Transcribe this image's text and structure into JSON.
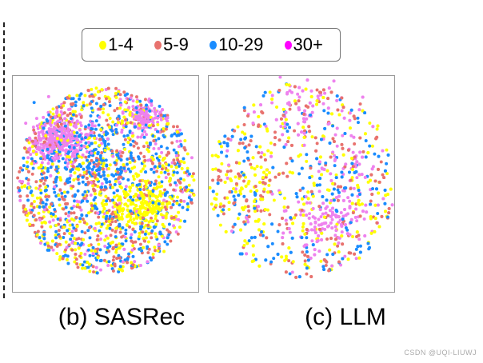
{
  "chart_data": [
    {
      "type": "scatter",
      "title": "(b) SASRec",
      "legend_placement": "top-center",
      "series": [
        {
          "name": "1-4",
          "color": "#ffff00"
        },
        {
          "name": "5-9",
          "color": "#e8726e"
        },
        {
          "name": "10-29",
          "color": "#1a8cff"
        },
        {
          "name": "30+",
          "color": "#ee82ee"
        }
      ]
    },
    {
      "type": "scatter",
      "title": "(c) LLM",
      "legend_placement": "top-center",
      "series": [
        {
          "name": "1-4",
          "color": "#ffff00"
        },
        {
          "name": "5-9",
          "color": "#e8726e"
        },
        {
          "name": "10-29",
          "color": "#1a8cff"
        },
        {
          "name": "30+",
          "color": "#ee82ee"
        }
      ]
    }
  ],
  "legend": [
    {
      "label": "1-4",
      "color": "#ffff00"
    },
    {
      "label": "5-9",
      "color": "#e8726e"
    },
    {
      "label": "10-29",
      "color": "#1a8cff"
    },
    {
      "label": "30+",
      "color": "#ff00ff"
    }
  ],
  "watermark": "CSDN @UQI-LIUWJ"
}
